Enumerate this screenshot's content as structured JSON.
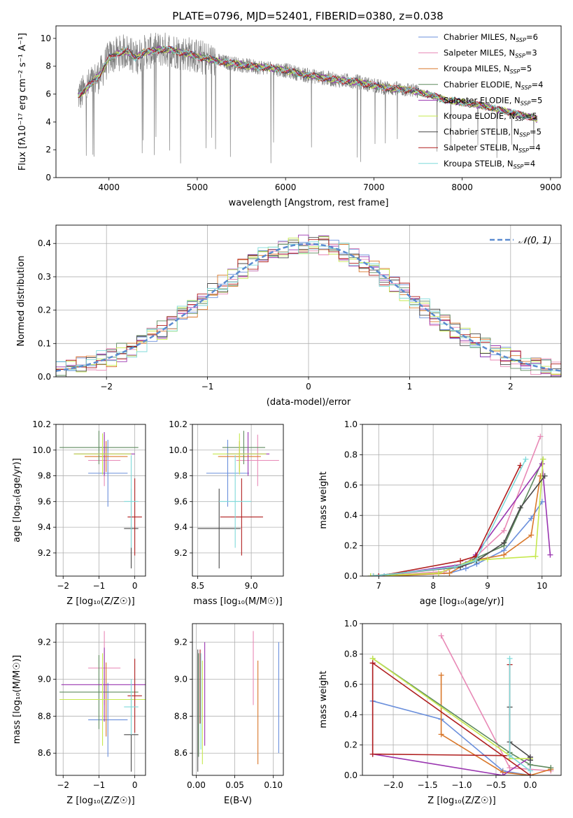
{
  "figure_title": "PLATE=0796, MJD=52401, FIBERID=0380, z=0.038",
  "chart_data": [
    {
      "id": "spectrum",
      "type": "line",
      "title": "PLATE=0796, MJD=52401, FIBERID=0380, z=0.038",
      "xlabel": "wavelength [Angstrom, rest frame]",
      "ylabel": "Flux [fλ10⁻¹⁷ erg cm⁻² s⁻¹ A⁻¹]",
      "xlim": [
        3400,
        9120
      ],
      "ylim": [
        0,
        10.9
      ],
      "xticks": [
        4000,
        5000,
        6000,
        7000,
        8000,
        9000
      ],
      "yticks": [
        0,
        2,
        4,
        6,
        8,
        10
      ],
      "grid": false,
      "legend_position": "top-right",
      "data_color": "#808080",
      "continuum": {
        "x": [
          3650,
          3700,
          3800,
          3900,
          4000,
          4100,
          4200,
          4300,
          4400,
          4500,
          4600,
          4700,
          4800,
          4900,
          5000,
          5200,
          5400,
          5600,
          5800,
          6000,
          6200,
          6400,
          6600,
          6800,
          7000,
          7200,
          7400,
          7600,
          7800,
          8000,
          8200,
          8400,
          8600,
          8800,
          8850
        ],
        "y": [
          5.9,
          6.1,
          6.8,
          7.4,
          8.6,
          8.9,
          9.1,
          8.6,
          9.0,
          9.1,
          9.2,
          9.2,
          9.0,
          8.9,
          8.7,
          8.4,
          8.2,
          8.0,
          7.9,
          7.7,
          7.4,
          7.2,
          7.0,
          6.9,
          6.6,
          6.4,
          6.3,
          6.0,
          5.6,
          5.4,
          5.2,
          4.9,
          4.6,
          4.3,
          4.2
        ]
      },
      "series": [
        {
          "label": "Chabrier MILES, N",
          "sub": "SSP",
          "n": "=6",
          "color": "#6a8fdc"
        },
        {
          "label": "Salpeter MILES, N",
          "sub": "SSP",
          "n": "=3",
          "color": "#e889b6"
        },
        {
          "label": "Kroupa MILES, N",
          "sub": "SSP",
          "n": "=5",
          "color": "#d9782b"
        },
        {
          "label": "Chabrier ELODIE, N",
          "sub": "SSP",
          "n": "=4",
          "color": "#5e8a5e"
        },
        {
          "label": "Salpeter ELODIE, N",
          "sub": "SSP",
          "n": "=5",
          "color": "#9a35b0"
        },
        {
          "label": "Kroupa ELODIE, N",
          "sub": "SSP",
          "n": "=5",
          "color": "#c6e84e"
        },
        {
          "label": "Chabrier STELIB, N",
          "sub": "SSP",
          "n": "=5",
          "color": "#4a4a4a"
        },
        {
          "label": "Salpeter STELIB, N",
          "sub": "SSP",
          "n": "=4",
          "color": "#b01f1f"
        },
        {
          "label": "Kroupa STELIB, N",
          "sub": "SSP",
          "n": "=4",
          "color": "#7fdada"
        }
      ]
    },
    {
      "id": "residuals",
      "type": "bar",
      "xlabel": "(data-model)/error",
      "ylabel": "Normed distribution",
      "xlim": [
        -2.5,
        2.5
      ],
      "ylim": [
        0,
        0.455
      ],
      "xticks": [
        -2,
        -1,
        0,
        1,
        2
      ],
      "xticklabels": [
        "−2",
        "−1",
        "0",
        "1",
        "2"
      ],
      "yticks": [
        0.0,
        0.1,
        0.2,
        0.3,
        0.4
      ],
      "yticklabels": [
        "0.0",
        "0.1",
        "0.2",
        "0.3",
        "0.4"
      ],
      "grid": true,
      "legend_position": "top-right",
      "reference": {
        "label": "𝒩(0, 1)",
        "mean": 0,
        "sigma": 1,
        "color": "#5b8bd0"
      },
      "bin_width": 0.1
    },
    {
      "id": "age-vs-Z",
      "type": "scatter",
      "xlabel": "Z [log₁₀(Z/Z☉)]",
      "ylabel": "age  [log₁₀(age/yr)]",
      "xlim": [
        -2.2,
        0.3
      ],
      "ylim": [
        9.02,
        10.2
      ],
      "xticks": [
        -2,
        -1,
        0
      ],
      "xticklabels": [
        "−2",
        "−1",
        "0"
      ],
      "yticks": [
        9.2,
        9.4,
        9.6,
        9.8,
        10.0,
        10.2
      ],
      "yticklabels": [
        "9.2",
        "9.4",
        "9.6",
        "9.8",
        "10.0",
        "10.2"
      ],
      "grid": true,
      "points": [
        {
          "color": "#6a8fdc",
          "x": -0.75,
          "xerr": 0.55,
          "y": 9.82,
          "yerr": 0.26
        },
        {
          "color": "#e889b6",
          "x": -0.85,
          "xerr": 0.45,
          "y": 9.92,
          "yerr": 0.2
        },
        {
          "color": "#d9782b",
          "x": -0.8,
          "xerr": 0.6,
          "y": 9.95,
          "yerr": 0.12
        },
        {
          "color": "#5e8a5e",
          "x": -1.0,
          "xerr": 1.1,
          "y": 10.02,
          "yerr": 0.13
        },
        {
          "color": "#9a35b0",
          "x": -0.85,
          "xerr": 0.85,
          "y": 9.97,
          "yerr": 0.17
        },
        {
          "color": "#c6e84e",
          "x": -0.9,
          "xerr": 0.8,
          "y": 9.97,
          "yerr": 0.16
        },
        {
          "color": "#4a4a4a",
          "x": -0.1,
          "xerr": 0.2,
          "y": 9.39,
          "yerr": 0.31
        },
        {
          "color": "#b01f1f",
          "x": 0.0,
          "xerr": 0.2,
          "y": 9.48,
          "yerr": 0.3
        },
        {
          "color": "#7fdada",
          "x": -0.1,
          "xerr": 0.2,
          "y": 9.6,
          "yerr": 0.36
        }
      ]
    },
    {
      "id": "age-vs-mass",
      "type": "scatter",
      "xlabel": "mass [log₁₀(M/M☉)]",
      "ylabel": "",
      "xlim": [
        8.45,
        9.3
      ],
      "ylim": [
        9.02,
        10.2
      ],
      "xticks": [
        8.5,
        9.0
      ],
      "xticklabels": [
        "8.5",
        "9.0"
      ],
      "yticks": [
        9.2,
        9.4,
        9.6,
        9.8,
        10.0,
        10.2
      ],
      "yticklabels": [
        "9.2",
        "9.4",
        "9.6",
        "9.8",
        "10.0",
        "10.2"
      ],
      "grid": true,
      "points": [
        {
          "color": "#6a8fdc",
          "x": 8.78,
          "xerr": 0.2,
          "y": 9.82,
          "yerr": 0.26
        },
        {
          "color": "#e889b6",
          "x": 9.06,
          "xerr": 0.2,
          "y": 9.92,
          "yerr": 0.2
        },
        {
          "color": "#d9782b",
          "x": 8.89,
          "xerr": 0.2,
          "y": 9.95,
          "yerr": 0.12
        },
        {
          "color": "#5e8a5e",
          "x": 8.93,
          "xerr": 0.2,
          "y": 10.02,
          "yerr": 0.13
        },
        {
          "color": "#9a35b0",
          "x": 8.97,
          "xerr": 0.2,
          "y": 9.97,
          "yerr": 0.17
        },
        {
          "color": "#c6e84e",
          "x": 8.89,
          "xerr": 0.25,
          "y": 9.97,
          "yerr": 0.16
        },
        {
          "color": "#4a4a4a",
          "x": 8.7,
          "xerr": 0.2,
          "y": 9.39,
          "yerr": 0.31
        },
        {
          "color": "#b01f1f",
          "x": 8.91,
          "xerr": 0.2,
          "y": 9.48,
          "yerr": 0.3
        },
        {
          "color": "#7fdada",
          "x": 8.85,
          "xerr": 0.15,
          "y": 9.6,
          "yerr": 0.36
        }
      ]
    },
    {
      "id": "mass-weight-vs-age",
      "type": "line",
      "xlabel": "age  [log₁₀(age/yr)]",
      "ylabel": "mass weight",
      "xlim": [
        6.7,
        10.35
      ],
      "ylim": [
        0,
        1.0
      ],
      "xticks": [
        7,
        8,
        9,
        10
      ],
      "xticklabels": [
        "7",
        "8",
        "9",
        "10"
      ],
      "yticks": [
        0.0,
        0.2,
        0.4,
        0.6,
        0.8,
        1.0
      ],
      "yticklabels": [
        "0.0",
        "0.2",
        "0.4",
        "0.6",
        "0.8",
        "1.0"
      ],
      "grid": true,
      "series": [
        {
          "color": "#6a8fdc",
          "x": [
            7.1,
            8.3,
            8.6,
            8.8,
            9.3,
            9.8,
            10.0
          ],
          "y": [
            0.0,
            0.02,
            0.05,
            0.08,
            0.17,
            0.38,
            0.49
          ]
        },
        {
          "color": "#e889b6",
          "x": [
            6.9,
            8.2,
            8.7,
            9.3,
            9.97
          ],
          "y": [
            0.0,
            0.03,
            0.1,
            0.3,
            0.92
          ]
        },
        {
          "color": "#d9782b",
          "x": [
            7.2,
            8.3,
            8.7,
            9.3,
            9.8,
            9.97
          ],
          "y": [
            0.0,
            0.02,
            0.1,
            0.14,
            0.27,
            0.66
          ]
        },
        {
          "color": "#5e8a5e",
          "x": [
            6.85,
            8.4,
            8.8,
            9.3,
            10.02
          ],
          "y": [
            0.0,
            0.06,
            0.12,
            0.2,
            0.77
          ]
        },
        {
          "color": "#9a35b0",
          "x": [
            7.0,
            8.6,
            8.78,
            10.0,
            10.15
          ],
          "y": [
            0.0,
            0.08,
            0.14,
            0.74,
            0.14
          ]
        },
        {
          "color": "#c6e84e",
          "x": [
            6.85,
            8.1,
            8.7,
            9.0,
            9.88,
            10.02
          ],
          "y": [
            0.0,
            0.02,
            0.1,
            0.11,
            0.13,
            0.77
          ]
        },
        {
          "color": "#4a4a4a",
          "x": [
            6.9,
            8.5,
            8.8,
            9.3,
            9.6,
            10.05
          ],
          "y": [
            0.0,
            0.06,
            0.1,
            0.22,
            0.45,
            0.66
          ]
        },
        {
          "color": "#b01f1f",
          "x": [
            7.0,
            8.5,
            8.78,
            9.6
          ],
          "y": [
            0.0,
            0.1,
            0.13,
            0.73
          ]
        },
        {
          "color": "#7fdada",
          "x": [
            6.9,
            8.4,
            8.78,
            9.7
          ],
          "y": [
            0.0,
            0.06,
            0.1,
            0.77
          ]
        }
      ]
    },
    {
      "id": "mass-vs-Z",
      "type": "scatter",
      "xlabel": "Z [log₁₀(Z/Z☉)]",
      "ylabel": "mass [log₁₀(M/M☉)]",
      "xlim": [
        -2.2,
        0.3
      ],
      "ylim": [
        8.48,
        9.3
      ],
      "xticks": [
        -2,
        -1,
        0
      ],
      "xticklabels": [
        "−2",
        "−1",
        "0"
      ],
      "yticks": [
        8.6,
        8.8,
        9.0,
        9.2
      ],
      "yticklabels": [
        "8.6",
        "8.8",
        "9.0",
        "9.2"
      ],
      "grid": true,
      "points": [
        {
          "color": "#6a8fdc",
          "x": -0.75,
          "xerr": 0.55,
          "y": 8.78,
          "yerr": 0.2
        },
        {
          "color": "#e889b6",
          "x": -0.85,
          "xerr": 0.45,
          "y": 9.06,
          "yerr": 0.2
        },
        {
          "color": "#d9782b",
          "x": -0.8,
          "xerr": 0.6,
          "y": 8.89,
          "yerr": 0.2
        },
        {
          "color": "#5e8a5e",
          "x": -1.0,
          "xerr": 1.1,
          "y": 8.93,
          "yerr": 0.2
        },
        {
          "color": "#9a35b0",
          "x": -0.85,
          "xerr": 1.2,
          "y": 8.97,
          "yerr": 0.2
        },
        {
          "color": "#c6e84e",
          "x": -0.9,
          "xerr": 1.2,
          "y": 8.89,
          "yerr": 0.25
        },
        {
          "color": "#4a4a4a",
          "x": -0.1,
          "xerr": 0.2,
          "y": 8.7,
          "yerr": 0.2
        },
        {
          "color": "#b01f1f",
          "x": 0.0,
          "xerr": 0.2,
          "y": 8.91,
          "yerr": 0.2
        },
        {
          "color": "#7fdada",
          "x": -0.1,
          "xerr": 0.2,
          "y": 8.85,
          "yerr": 0.15
        }
      ]
    },
    {
      "id": "mass-vs-ebv",
      "type": "scatter",
      "xlabel": "E(B-V)",
      "ylabel": "",
      "xlim": [
        -0.005,
        0.113
      ],
      "ylim": [
        8.48,
        9.3
      ],
      "xticks": [
        0.0,
        0.05,
        0.1
      ],
      "xticklabels": [
        "0.00",
        "0.05",
        "0.10"
      ],
      "yticks": [
        8.6,
        8.8,
        9.0,
        9.2
      ],
      "yticklabels": [
        "8.6",
        "8.8",
        "9.0",
        "9.2"
      ],
      "grid": true,
      "points": [
        {
          "color": "#6a8fdc",
          "x": 0.107,
          "xerr": 0,
          "y": 8.9,
          "yerr": 0.3
        },
        {
          "color": "#e889b6",
          "x": 0.074,
          "xerr": 0,
          "y": 9.06,
          "yerr": 0.2
        },
        {
          "color": "#d9782b",
          "x": 0.08,
          "xerr": 0,
          "y": 8.82,
          "yerr": 0.28
        },
        {
          "color": "#5e8a5e",
          "x": 0.003,
          "xerr": 0,
          "y": 8.86,
          "yerr": 0.28
        },
        {
          "color": "#9a35b0",
          "x": 0.011,
          "xerr": 0,
          "y": 8.92,
          "yerr": 0.28
        },
        {
          "color": "#c6e84e",
          "x": 0.008,
          "xerr": 0,
          "y": 8.82,
          "yerr": 0.28
        },
        {
          "color": "#4a4a4a",
          "x": 0.002,
          "xerr": 0,
          "y": 8.83,
          "yerr": 0.33
        },
        {
          "color": "#b01f1f",
          "x": 0.005,
          "xerr": 0,
          "y": 8.96,
          "yerr": 0.2
        },
        {
          "color": "#7fdada",
          "x": 0.006,
          "xerr": 0,
          "y": 8.88,
          "yerr": 0.26
        }
      ]
    },
    {
      "id": "mass-weight-vs-Z",
      "type": "line",
      "xlabel": "Z [log₁₀(Z/Z☉)]",
      "ylabel": "mass weight",
      "xlim": [
        -2.45,
        0.45
      ],
      "ylim": [
        0,
        1.0
      ],
      "xticks": [
        -2.0,
        -1.5,
        -1.0,
        -0.5,
        0.0
      ],
      "xticklabels": [
        "−2.0",
        "−1.5",
        "−1.0",
        "−0.5",
        "0.0"
      ],
      "yticks": [
        0.0,
        0.2,
        0.4,
        0.6,
        0.8,
        1.0
      ],
      "yticklabels": [
        "0.0",
        "0.2",
        "0.4",
        "0.6",
        "0.8",
        "1.0"
      ],
      "grid": true,
      "series": [
        {
          "color": "#6a8fdc",
          "x": [
            -2.3,
            -1.3,
            -0.4,
            0.0,
            0.0
          ],
          "y": [
            0.49,
            0.37,
            0.03,
            0.0,
            0.1
          ]
        },
        {
          "color": "#e889b6",
          "x": [
            -1.3,
            -0.3,
            0.3
          ],
          "y": [
            0.92,
            0.05,
            0.03
          ]
        },
        {
          "color": "#d9782b",
          "x": [
            -1.3,
            -1.3,
            -0.4,
            0.0,
            0.3
          ],
          "y": [
            0.66,
            0.27,
            0.02,
            0.0,
            0.04
          ]
        },
        {
          "color": "#5e8a5e",
          "x": [
            -2.3,
            -0.3,
            0.0,
            0.3
          ],
          "y": [
            0.77,
            0.15,
            0.07,
            0.05
          ]
        },
        {
          "color": "#9a35b0",
          "x": [
            -2.3,
            -2.3,
            -0.4,
            0.0
          ],
          "y": [
            0.74,
            0.14,
            0.0,
            0.12
          ]
        },
        {
          "color": "#c6e84e",
          "x": [
            -2.3,
            -0.3,
            -0.3,
            0.0
          ],
          "y": [
            0.77,
            0.13,
            0.11,
            0.11
          ]
        },
        {
          "color": "#4a4a4a",
          "x": [
            -0.3,
            -0.3,
            0.0,
            0.0
          ],
          "y": [
            0.45,
            0.22,
            0.12,
            0.1
          ]
        },
        {
          "color": "#b01f1f",
          "x": [
            -0.3,
            -0.3,
            -2.3,
            -2.3,
            0.0
          ],
          "y": [
            0.73,
            0.13,
            0.14,
            0.74,
            0.0
          ]
        },
        {
          "color": "#7fdada",
          "x": [
            -0.3,
            -0.3,
            0.0
          ],
          "y": [
            0.77,
            0.13,
            0.03
          ]
        }
      ]
    }
  ]
}
